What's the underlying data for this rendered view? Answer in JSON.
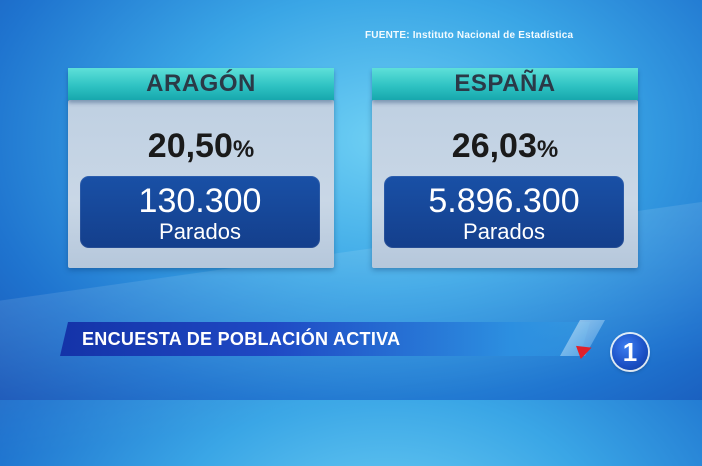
{
  "source": "FUENTE: Instituto Nacional de Estadística",
  "regions": [
    {
      "name": "ARAGÓN",
      "rate": "20,50",
      "rate_sign": "%",
      "unemployed": "130.300",
      "unemployed_label": "Parados"
    },
    {
      "name": "ESPAÑA",
      "rate": "26,03",
      "rate_sign": "%",
      "unemployed": "5.896.300",
      "unemployed_label": "Parados"
    }
  ],
  "lower_third": {
    "title": "ENCUESTA DE POBLACIÓN ACTIVA"
  },
  "channel": {
    "logo_text": "1",
    "logo_icon": "tve-1-logo"
  },
  "colors": {
    "tab": "#2fc3c3",
    "box": "#1950a6",
    "accent_red": "#e0202a"
  }
}
